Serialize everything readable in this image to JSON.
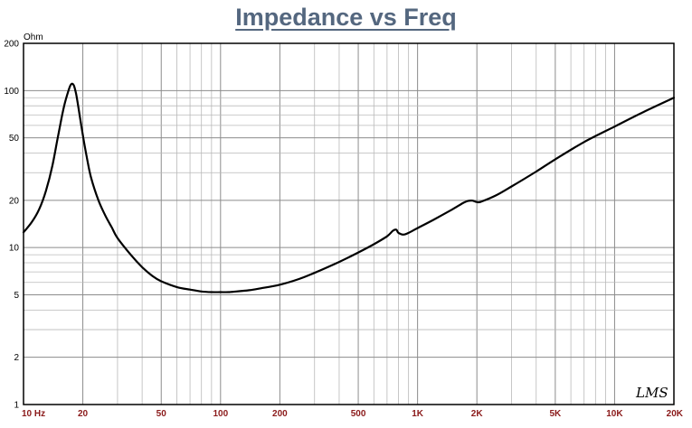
{
  "chart_data": {
    "type": "line",
    "title": "Impedance vs Freq",
    "ylabel": "Ohm",
    "xscale": "log",
    "yscale": "log",
    "xlim": [
      10,
      20000
    ],
    "ylim": [
      1,
      200
    ],
    "grid": true,
    "x_tick_labels": [
      {
        "value": 10,
        "label": "10 Hz"
      },
      {
        "value": 20,
        "label": "20"
      },
      {
        "value": 50,
        "label": "50"
      },
      {
        "value": 100,
        "label": "100"
      },
      {
        "value": 200,
        "label": "200"
      },
      {
        "value": 500,
        "label": "500"
      },
      {
        "value": 1000,
        "label": "1K"
      },
      {
        "value": 2000,
        "label": "2K"
      },
      {
        "value": 5000,
        "label": "5K"
      },
      {
        "value": 10000,
        "label": "10K"
      },
      {
        "value": 20000,
        "label": "20K"
      }
    ],
    "y_tick_labels": [
      {
        "value": 1,
        "label": "1"
      },
      {
        "value": 2,
        "label": "2"
      },
      {
        "value": 5,
        "label": "5"
      },
      {
        "value": 10,
        "label": "10"
      },
      {
        "value": 20,
        "label": "20"
      },
      {
        "value": 50,
        "label": "50"
      },
      {
        "value": 100,
        "label": "100"
      },
      {
        "value": 200,
        "label": "200"
      }
    ],
    "series": [
      {
        "x": [
          10,
          11,
          12,
          13,
          14,
          15,
          16,
          17,
          17.5,
          18,
          18.5,
          19,
          20,
          21,
          22,
          24,
          26,
          28,
          30,
          35,
          40,
          45,
          50,
          60,
          70,
          80,
          90,
          100,
          110,
          120,
          140,
          160,
          200,
          250,
          300,
          400,
          500,
          600,
          700,
          750,
          780,
          800,
          850,
          900,
          1000,
          1200,
          1500,
          1700,
          1800,
          1900,
          2000,
          2100,
          2500,
          3000,
          4000,
          5000,
          7000,
          10000,
          14000,
          20000
        ],
        "y": [
          12.5,
          14.5,
          17.5,
          23,
          33,
          52,
          78,
          102,
          110,
          108,
          95,
          78,
          52,
          37,
          28,
          20,
          16,
          13.5,
          11.5,
          9,
          7.5,
          6.6,
          6.1,
          5.6,
          5.4,
          5.25,
          5.2,
          5.2,
          5.2,
          5.25,
          5.35,
          5.5,
          5.8,
          6.3,
          6.9,
          8.1,
          9.3,
          10.5,
          11.8,
          12.8,
          13,
          12.4,
          12.1,
          12.4,
          13.3,
          15,
          17.5,
          19.2,
          19.8,
          19.9,
          19.5,
          19.6,
          21.5,
          24.5,
          30.5,
          36.5,
          47,
          59,
          73,
          90
        ]
      }
    ]
  },
  "watermark": "LMS"
}
